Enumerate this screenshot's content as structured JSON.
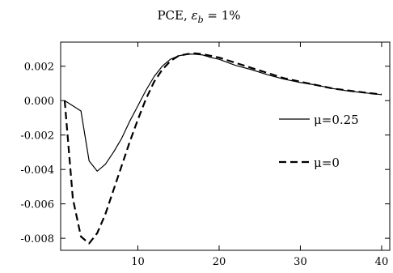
{
  "chart_data": {
    "type": "line",
    "title": {
      "prefix": "PCE, ",
      "symbol": "ε",
      "subscript": "b",
      "suffix": " = 1%"
    },
    "xlabel": "",
    "ylabel": "",
    "xlim": [
      0.5,
      41
    ],
    "ylim": [
      -0.0087,
      0.0034
    ],
    "xticks": [
      10,
      20,
      30,
      40
    ],
    "xtick_labels": [
      "10",
      "20",
      "30",
      "40"
    ],
    "yticks": [
      0.002,
      0.0,
      -0.002,
      -0.004,
      -0.006,
      -0.008
    ],
    "ytick_labels": [
      "0.002",
      "0.000",
      "-0.002",
      "-0.004",
      "-0.006",
      "-0.008"
    ],
    "grid": false,
    "legend_position": "right",
    "series": [
      {
        "name": "μ=0.25",
        "style": "solid",
        "color": "#000000",
        "x": [
          1,
          2,
          3,
          4,
          5,
          6,
          7,
          8,
          9,
          10,
          11,
          12,
          13,
          14,
          15,
          16,
          17,
          18,
          19,
          20,
          22,
          24,
          26,
          28,
          30,
          32,
          34,
          36,
          38,
          40
        ],
        "y": [
          0.0,
          -0.0003,
          -0.0006,
          -0.0035,
          -0.0041,
          -0.0037,
          -0.003,
          -0.0022,
          -0.0012,
          -0.0003,
          0.0006,
          0.0014,
          0.002,
          0.0024,
          0.0026,
          0.0027,
          0.0027,
          0.00265,
          0.0025,
          0.0024,
          0.00205,
          0.0018,
          0.0015,
          0.00125,
          0.00105,
          0.0009,
          0.0007,
          0.00055,
          0.00045,
          0.00035
        ]
      },
      {
        "name": "μ=0",
        "style": "dashed",
        "color": "#000000",
        "x": [
          1,
          2,
          3,
          4,
          5,
          6,
          7,
          8,
          9,
          10,
          11,
          12,
          13,
          14,
          15,
          16,
          17,
          18,
          19,
          20,
          22,
          24,
          26,
          28,
          30,
          32,
          34,
          36,
          38,
          40
        ],
        "y": [
          0.0,
          -0.0057,
          -0.0079,
          -0.0083,
          -0.0077,
          -0.0066,
          -0.0052,
          -0.0038,
          -0.0024,
          -0.0011,
          0.0001,
          0.0011,
          0.0018,
          0.0023,
          0.0026,
          0.0027,
          0.00275,
          0.0027,
          0.0026,
          0.0025,
          0.0022,
          0.0019,
          0.0016,
          0.0013,
          0.0011,
          0.0009,
          0.0007,
          0.00058,
          0.00046,
          0.00036
        ]
      }
    ]
  }
}
